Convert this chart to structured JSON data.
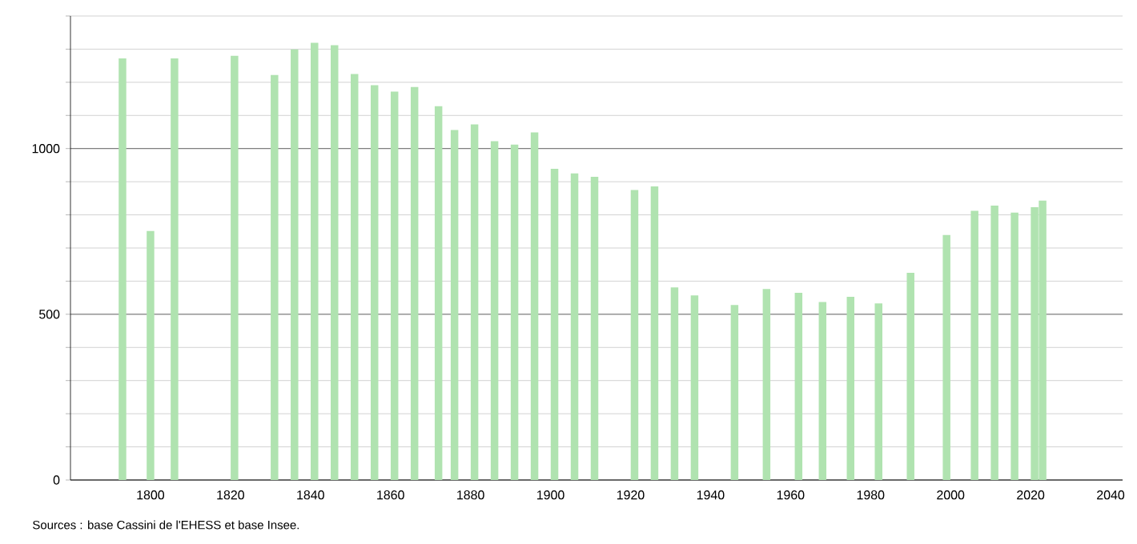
{
  "chart_data": {
    "type": "bar",
    "x": [
      1793,
      1800,
      1806,
      1821,
      1831,
      1836,
      1841,
      1846,
      1851,
      1856,
      1861,
      1866,
      1872,
      1876,
      1881,
      1886,
      1891,
      1896,
      1901,
      1906,
      1911,
      1921,
      1926,
      1931,
      1936,
      1946,
      1954,
      1962,
      1968,
      1975,
      1982,
      1990,
      1999,
      2006,
      2011,
      2016,
      2021,
      2023
    ],
    "values": [
      1272,
      751,
      1272,
      1280,
      1222,
      1299,
      1319,
      1312,
      1225,
      1191,
      1172,
      1186,
      1128,
      1056,
      1073,
      1022,
      1012,
      1049,
      939,
      925,
      915,
      875,
      886,
      581,
      557,
      528,
      576,
      565,
      537,
      553,
      533,
      625,
      739,
      812,
      828,
      807,
      823,
      843
    ],
    "color": "#b0e3b0",
    "xlim": [
      1780,
      2043
    ],
    "xticks": [
      1800,
      1820,
      1840,
      1860,
      1880,
      1900,
      1920,
      1940,
      1960,
      1980,
      2000,
      2020,
      2040
    ],
    "ylim": [
      0,
      1400
    ],
    "yticks": [
      0,
      {
        "value": 100,
        "label": null
      },
      {
        "value": 200,
        "label": null
      },
      {
        "value": 300,
        "label": null
      },
      {
        "value": 400,
        "label": null
      },
      500,
      {
        "value": 600,
        "label": null
      },
      {
        "value": 700,
        "label": null
      },
      {
        "value": 800,
        "label": null
      },
      {
        "value": 900,
        "label": null
      },
      1000,
      {
        "value": 1100,
        "label": null
      },
      {
        "value": 1200,
        "label": null
      },
      {
        "value": 1300,
        "label": null
      },
      {
        "value": 1400,
        "label": null
      }
    ],
    "grid": "y",
    "annotations": [
      "Sources : base Cassini de l'EHESS et base Insee."
    ]
  }
}
